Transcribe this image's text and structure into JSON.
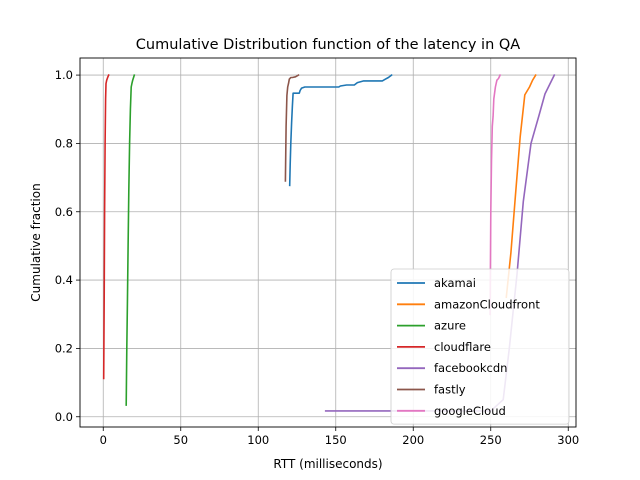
{
  "chart_data": {
    "type": "line",
    "title": "Cumulative Distribution function of the latency in QA",
    "xlabel": "RTT (milliseconds)",
    "ylabel": "Cumulative fraction",
    "xlim": [
      -15,
      305
    ],
    "ylim": [
      -0.03,
      1.05
    ],
    "xticks": [
      0,
      50,
      100,
      150,
      200,
      250,
      300
    ],
    "yticks": [
      0.0,
      0.2,
      0.4,
      0.6,
      0.8,
      1.0
    ],
    "xtick_labels": [
      "0",
      "50",
      "100",
      "150",
      "200",
      "250",
      "300"
    ],
    "ytick_labels": [
      "0.0",
      "0.2",
      "0.4",
      "0.6",
      "0.8",
      "1.0"
    ],
    "grid": true,
    "legend_position": "lower right",
    "series": [
      {
        "name": "akamai",
        "color": "#1f77b4",
        "x": [
          120.3,
          120.6,
          121.0,
          121.5,
          122.0,
          122.5,
          126.5,
          127.0,
          128,
          130,
          152,
          153,
          157,
          162,
          164,
          168,
          180,
          182,
          184,
          186
        ],
        "y": [
          0.677,
          0.74,
          0.8,
          0.86,
          0.91,
          0.947,
          0.947,
          0.955,
          0.962,
          0.965,
          0.965,
          0.968,
          0.971,
          0.971,
          0.978,
          0.983,
          0.983,
          0.988,
          0.993,
          1.0
        ]
      },
      {
        "name": "amazonCloudfront",
        "color": "#ff7f0e",
        "x": [
          260,
          263,
          266,
          269,
          272,
          275,
          277,
          279
        ],
        "y": [
          0.35,
          0.48,
          0.65,
          0.82,
          0.942,
          0.965,
          0.985,
          1.0
        ]
      },
      {
        "name": "azure",
        "color": "#2ca02c",
        "x": [
          14.8,
          15.2,
          15.6,
          16.0,
          16.5,
          17.0,
          17.5,
          18.0,
          18.5,
          19.0,
          20.0
        ],
        "y": [
          0.034,
          0.2,
          0.33,
          0.5,
          0.66,
          0.8,
          0.9,
          0.965,
          0.975,
          0.985,
          1.0
        ]
      },
      {
        "name": "cloudflare",
        "color": "#d62728",
        "x": [
          0.3,
          0.6,
          0.9,
          1.2,
          1.5,
          1.8,
          2.2,
          2.6,
          3.0,
          3.5
        ],
        "y": [
          0.112,
          0.35,
          0.6,
          0.8,
          0.93,
          0.975,
          0.985,
          0.99,
          0.995,
          1.0
        ]
      },
      {
        "name": "facebookcdn",
        "color": "#9467bd",
        "x": [
          143.5,
          145,
          200,
          250,
          258,
          262,
          267,
          271,
          276,
          281,
          285,
          291
        ],
        "y": [
          0.017,
          0.017,
          0.017,
          0.017,
          0.05,
          0.2,
          0.42,
          0.63,
          0.8,
          0.88,
          0.945,
          1.0
        ]
      },
      {
        "name": "fastly",
        "color": "#8c564b",
        "x": [
          117.5,
          118.0,
          118.5,
          119.0,
          119.5,
          120.0,
          121.0,
          122.0,
          124.0,
          126.0
        ],
        "y": [
          0.69,
          0.85,
          0.94,
          0.965,
          0.975,
          0.988,
          0.993,
          0.993,
          0.995,
          1.0
        ]
      },
      {
        "name": "googleCloud",
        "color": "#e377c2",
        "x": [
          249.6,
          250.0,
          250.5,
          251.0,
          251.5,
          252.0,
          253.0,
          254.0,
          255.0,
          256.0
        ],
        "y": [
          0.3,
          0.6,
          0.75,
          0.85,
          0.88,
          0.93,
          0.965,
          0.985,
          0.99,
          1.0
        ]
      }
    ]
  }
}
